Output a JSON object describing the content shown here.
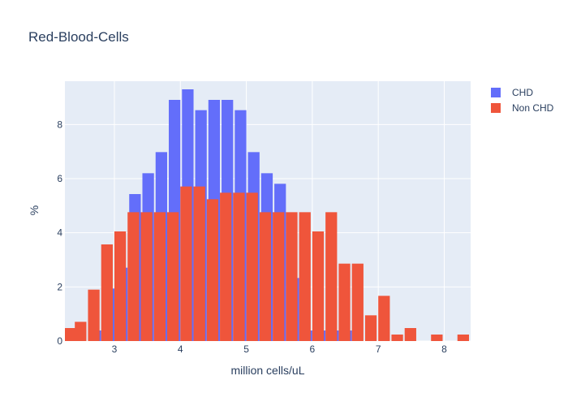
{
  "chart_data": {
    "type": "bar",
    "title": "Red-Blood-Cells",
    "xlabel": "million cells/uL",
    "ylabel": "%",
    "xlim": [
      2.25,
      8.4
    ],
    "ylim": [
      0,
      9.6
    ],
    "x_ticks": [
      "3",
      "4",
      "5",
      "6",
      "7",
      "8"
    ],
    "y_ticks": [
      "0",
      "2",
      "4",
      "6",
      "8"
    ],
    "grid": true,
    "legend_position": "top-right",
    "colors": {
      "CHD": "#636efa",
      "Non CHD": "#ef553b",
      "plot_bg": "#e5ecf6"
    },
    "series": [
      {
        "name": "CHD",
        "x": [
          2.4,
          2.6,
          2.8,
          3.0,
          3.2,
          3.4,
          3.6,
          3.8,
          4.0,
          4.2,
          4.4,
          4.6,
          4.8,
          5.0,
          5.2,
          5.4,
          5.6,
          5.8,
          6.0,
          6.2,
          6.4,
          6.6
        ],
        "values": [
          0.39,
          0,
          0.39,
          1.94,
          2.71,
          5.43,
          6.2,
          6.98,
          8.91,
          9.3,
          8.53,
          8.91,
          8.91,
          8.53,
          6.98,
          6.2,
          5.81,
          2.33,
          0.39,
          0.39,
          0.39,
          0.39
        ]
      },
      {
        "name": "Non CHD",
        "x": [
          2.25,
          2.4,
          2.6,
          2.8,
          3.0,
          3.2,
          3.4,
          3.6,
          3.8,
          4.0,
          4.2,
          4.4,
          4.6,
          4.8,
          5.0,
          5.2,
          5.4,
          5.6,
          5.8,
          6.0,
          6.2,
          6.4,
          6.6,
          6.8,
          7.0,
          7.2,
          7.4,
          7.6,
          7.8,
          8.0,
          8.2,
          8.4
        ],
        "values": [
          0.48,
          0.71,
          1.9,
          3.57,
          4.05,
          4.76,
          4.76,
          4.76,
          4.76,
          5.71,
          5.71,
          5.24,
          5.48,
          5.48,
          5.48,
          4.76,
          4.76,
          4.76,
          4.76,
          4.05,
          4.76,
          2.86,
          2.86,
          0.95,
          1.67,
          0.24,
          0.48,
          0,
          0.24,
          0,
          0.24,
          0
        ]
      }
    ]
  }
}
